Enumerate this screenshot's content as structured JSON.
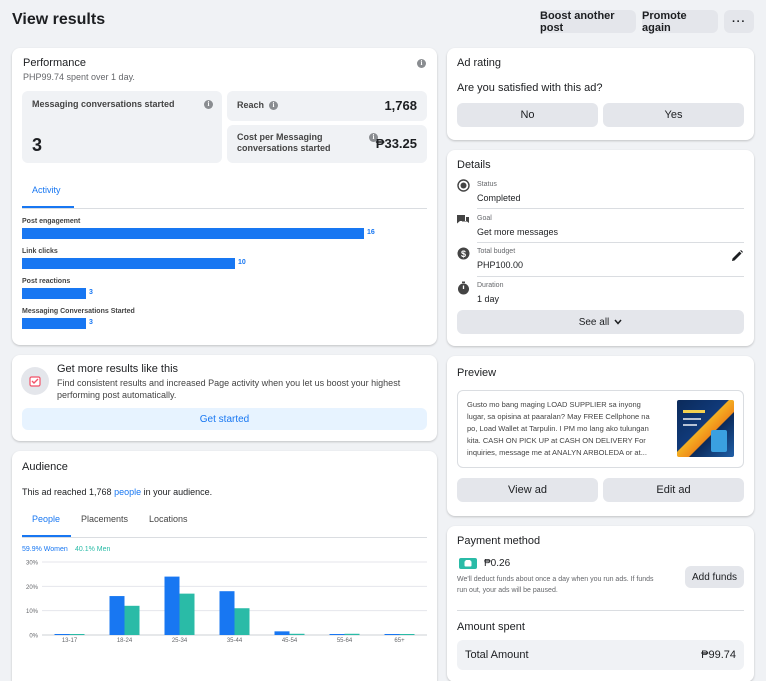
{
  "header": {
    "title": "View results",
    "boost_another_label": "Boost another post",
    "promote_again_label": "Promote again",
    "more_label": "···"
  },
  "performance": {
    "title": "Performance",
    "subtitle": "PHP99.74 spent over 1 day.",
    "messaging_label": "Messaging conversations started",
    "messaging_value": "3",
    "reach_label": "Reach",
    "reach_value": "1,768",
    "cost_label_line1": "Cost per Messaging",
    "cost_label_line2": "conversations started",
    "cost_value": "₱33.25",
    "activity_tab": "Activity",
    "activity": [
      {
        "label": "Post engagement",
        "value": 16
      },
      {
        "label": "Link clicks",
        "value": 10
      },
      {
        "label": "Post reactions",
        "value": 3
      },
      {
        "label": "Messaging Conversations Started",
        "value": 3
      }
    ]
  },
  "get_more": {
    "title": "Get more results like this",
    "text_line1": "Find consistent results and increased Page activity when you let us boost your highest",
    "text_line2": "performing post automatically.",
    "cta": "Get started"
  },
  "audience": {
    "title": "Audience",
    "reach_prefix": "This ad reached 1,768 ",
    "reach_link": "people",
    "reach_suffix": " in your audience.",
    "tabs": [
      "People",
      "Placements",
      "Locations"
    ],
    "women_legend": "59.9% Women",
    "men_legend": "40.1% Men",
    "colors": {
      "women": "#1877f2",
      "men": "#2abba7"
    }
  },
  "chart_data": {
    "type": "bar",
    "categories": [
      "13-17",
      "18-24",
      "25-34",
      "35-44",
      "45-54",
      "55-64",
      "65+"
    ],
    "series": [
      {
        "name": "Women",
        "values": [
          0.2,
          16,
          24,
          18,
          1.5,
          0.2,
          0.2
        ]
      },
      {
        "name": "Men",
        "values": [
          0.2,
          12,
          17,
          11,
          0.5,
          0.5,
          0.2
        ]
      }
    ],
    "yticks": [
      "0%",
      "10%",
      "20%",
      "30%"
    ],
    "ylim": [
      0,
      30
    ],
    "grid": true
  },
  "ad_rating": {
    "title": "Ad rating",
    "question": "Are you satisfied with this ad?",
    "no_label": "No",
    "yes_label": "Yes"
  },
  "details": {
    "title": "Details",
    "items": [
      {
        "label": "Status",
        "value": "Completed",
        "icon": "status-icon"
      },
      {
        "label": "Goal",
        "value": "Get more messages",
        "icon": "chat-icon"
      },
      {
        "label": "Total budget",
        "value": "PHP100.00",
        "icon": "dollar-icon"
      },
      {
        "label": "Duration",
        "value": "1 day",
        "icon": "stopwatch-icon"
      }
    ],
    "see_all": "See all"
  },
  "preview": {
    "title": "Preview",
    "text_lines": [
      "Gusto mo bang maging LOAD SUPPLIER sa inyong",
      "lugar, sa opisina at paaralan? May FREE Cellphone na",
      "po, Load Wallet at Tarpulin. I PM mo lang ako tulungan",
      "kita. CASH ON PICK UP at CASH ON DELIVERY For",
      "inquiries, message me at ANALYN ARBOLEDA or at..."
    ],
    "view_ad": "View ad",
    "edit_ad": "Edit ad"
  },
  "payment": {
    "title": "Payment method",
    "balance": "₱0.26",
    "note_line1": "We'll deduct funds about once a day when you run ads. If funds",
    "note_line2": "run out, your ads will be paused.",
    "add_funds": "Add funds",
    "amount_spent_title": "Amount spent",
    "total_label": "Total Amount",
    "total_value": "₱99.74"
  }
}
